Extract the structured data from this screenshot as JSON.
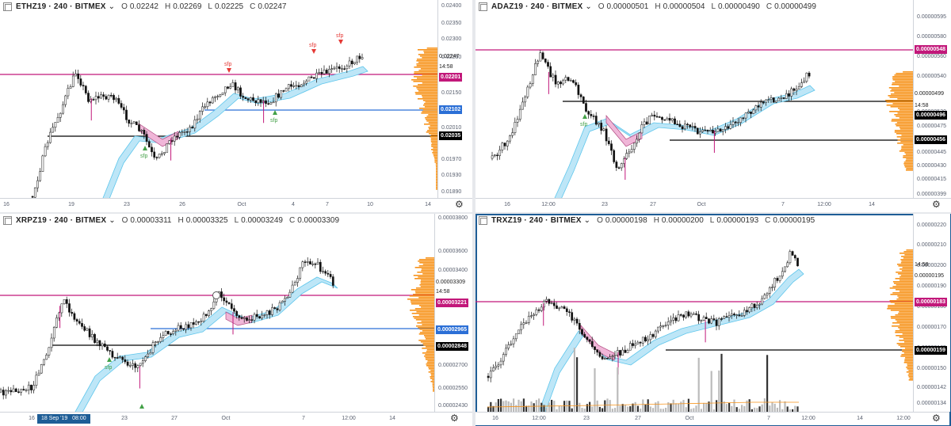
{
  "panes": [
    {
      "symbol": "ETHZ19 · 240 · BITMEX",
      "ohlc": {
        "o": "0.02242",
        "h": "0.02269",
        "l": "0.02225",
        "c": "0.02247"
      },
      "price_ticks": [
        "0.02400",
        "0.02350",
        "0.02300",
        "0.02250",
        "0.02150",
        "0.02010",
        "0.01970",
        "0.01930",
        "0.01890"
      ],
      "x_ticks": [
        "16",
        "19",
        "23",
        "26",
        "Oct",
        "4",
        "7",
        "10",
        "14"
      ],
      "tags": [
        {
          "text": "0.02247",
          "kind": "plain"
        },
        {
          "text": "14:58",
          "kind": "plain"
        },
        {
          "text": "0.02201",
          "kind": "magenta"
        },
        {
          "text": "0.02102",
          "kind": "blue"
        },
        {
          "text": "0.02035",
          "kind": "black"
        }
      ],
      "sfp_labels": [
        "sfp",
        "sfp",
        "sfp",
        "sfp",
        "sfp"
      ]
    },
    {
      "symbol": "ADAZ19 · 240 · BITMEX",
      "ohlc": {
        "o": "0.00000501",
        "h": "0.00000504",
        "l": "0.00000490",
        "c": "0.00000499"
      },
      "price_ticks": [
        "0.00000595",
        "0.00000580",
        "0.00000560",
        "0.00000540",
        "0.00000520",
        "0.00000475",
        "0.00000460",
        "0.00000445",
        "0.00000430",
        "0.00000415",
        "0.00000399"
      ],
      "x_ticks": [
        "16",
        "12:00",
        "23",
        "27",
        "Oct",
        "7",
        "12:00",
        "14"
      ],
      "tags": [
        {
          "text": "0.00000548",
          "kind": "magenta"
        },
        {
          "text": "0.00000499",
          "kind": "plain"
        },
        {
          "text": "14:58",
          "kind": "plain"
        },
        {
          "text": "0.00000496",
          "kind": "black"
        },
        {
          "text": "0.00000456",
          "kind": "black"
        }
      ],
      "sfp_labels": [
        "sfp"
      ]
    },
    {
      "symbol": "XRPZ19 · 240 · BITMEX",
      "ohlc": {
        "o": "0.00003311",
        "h": "0.00003325",
        "l": "0.00003249",
        "c": "0.00003309"
      },
      "price_ticks": [
        "0.00003800",
        "0.00003600",
        "0.00003400",
        "0.00002700",
        "0.00002550",
        "0.00002430"
      ],
      "x_ticks": [
        "16",
        "23",
        "27",
        "Oct",
        "7",
        "12:00",
        "14"
      ],
      "crosshair_date": "18 Sep '19",
      "crosshair_time": "08:00",
      "tags": [
        {
          "text": "0.00003309",
          "kind": "plain"
        },
        {
          "text": "14:58",
          "kind": "plain"
        },
        {
          "text": "0.00003221",
          "kind": "magenta"
        },
        {
          "text": "0.00002965",
          "kind": "blue"
        },
        {
          "text": "0.00002848",
          "kind": "black"
        }
      ],
      "sfp_labels": [
        "sfp"
      ]
    },
    {
      "symbol": "TRXZ19 · 240 · BITMEX",
      "ohlc": {
        "o": "0.00000198",
        "h": "0.00000200",
        "l": "0.00000193",
        "c": "0.00000195"
      },
      "price_ticks": [
        "0.00000220",
        "0.00000210",
        "0.00000200",
        "0.00000190",
        "0.00000180",
        "0.00000170",
        "0.00000165",
        "0.00000150",
        "0.00000142",
        "0.00000134"
      ],
      "x_ticks": [
        "16",
        "12:00",
        "23",
        "27",
        "Oct",
        "7",
        "12:00",
        "14",
        "12:00"
      ],
      "tags": [
        {
          "text": "0.00000195",
          "kind": "plain"
        },
        {
          "text": "14:58",
          "kind": "plain"
        },
        {
          "text": "0.00000183",
          "kind": "magenta"
        },
        {
          "text": "0.00000159",
          "kind": "black"
        }
      ],
      "sfp_labels": []
    }
  ],
  "colors": {
    "magenta": "#c2187a",
    "blue": "#2b6fd6",
    "black": "#000000",
    "orange": "#f7931a",
    "cloud": "#bde6f7",
    "cloud_edge": "#5ec6ec",
    "candle": "#111111",
    "sfp_red": "#e53935",
    "sfp_green": "#43a047"
  },
  "icons": {
    "settings": "gear-icon",
    "collapse": "collapse-icon",
    "dropdown": "chevron-down-icon"
  }
}
